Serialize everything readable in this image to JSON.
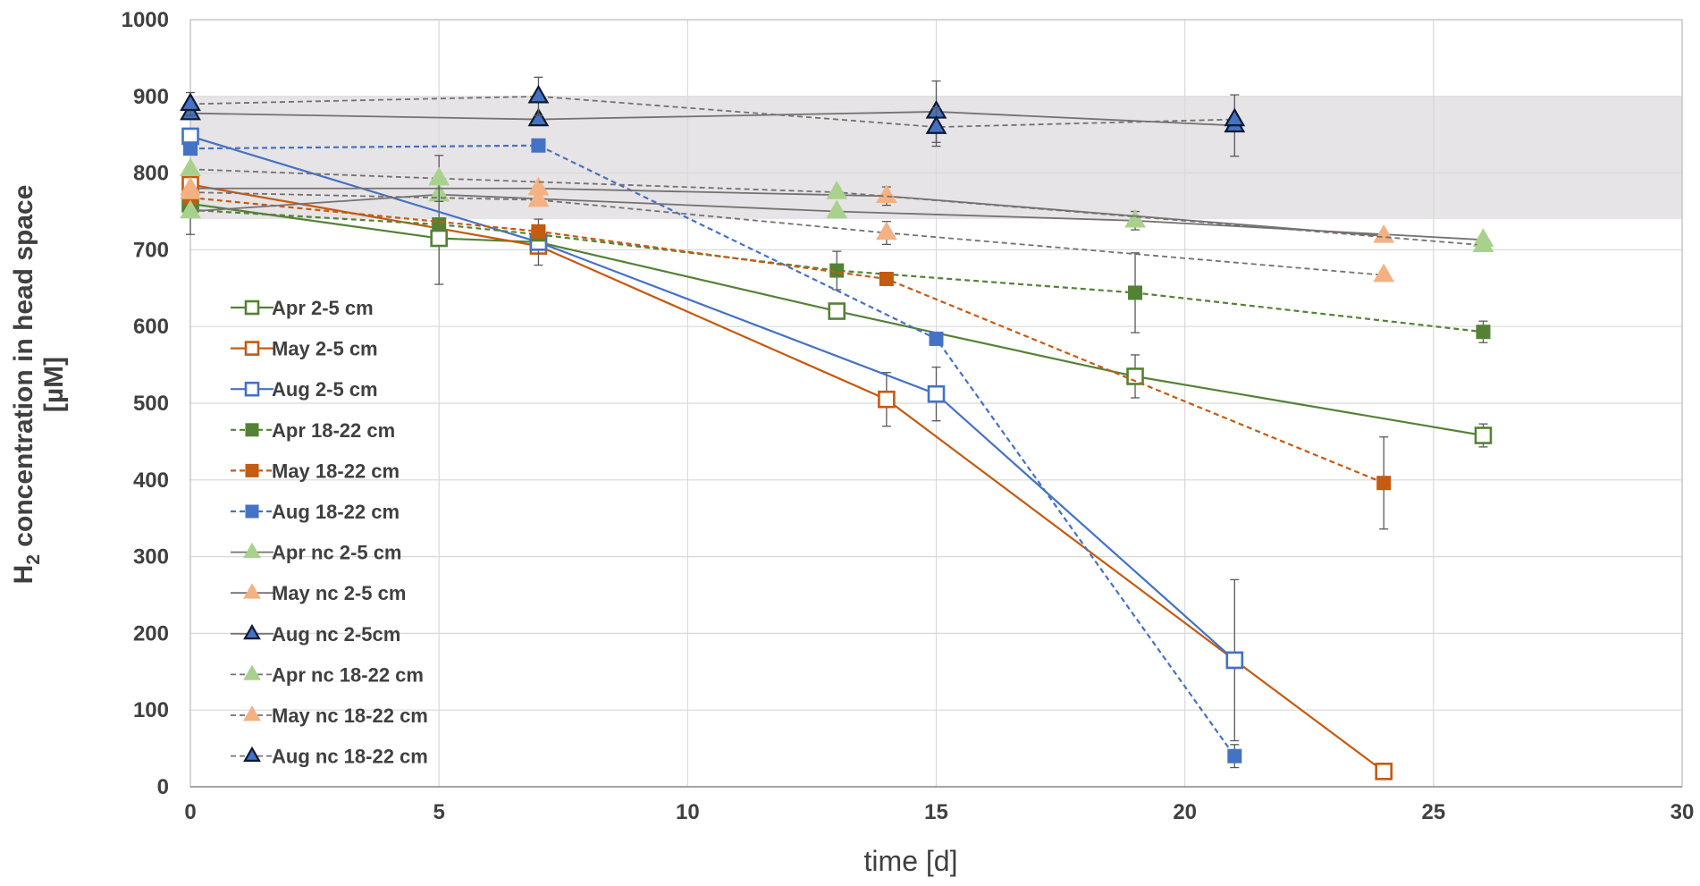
{
  "chart_data": {
    "type": "line",
    "xlabel": "time [d]",
    "ylabel": "H2 concentration in head space [µM]",
    "ylabel_parts": {
      "main": "H",
      "sub": "2",
      "rest": " concentration in head space",
      "unit": "[µM]"
    },
    "xlim": [
      0,
      30
    ],
    "ylim": [
      0,
      1000
    ],
    "xticks": [
      0,
      5,
      10,
      15,
      20,
      25,
      30
    ],
    "yticks": [
      0,
      100,
      200,
      300,
      400,
      500,
      600,
      700,
      800,
      900,
      1000
    ],
    "grid": true,
    "shaded_band": {
      "y_from": 740,
      "y_to": 900,
      "color": "#e6e4e6"
    },
    "legend_position": "left-middle",
    "colors": {
      "green": "#548235",
      "orange": "#c55a11",
      "blue": "#4472c4",
      "gray": "#767171",
      "tri_green": "#a9d18e",
      "tri_orange": "#f4b183",
      "tri_blue": "#4472c4"
    },
    "series": [
      {
        "name": "Apr 2-5 cm",
        "line": "#548235",
        "dash": false,
        "marker": "square-open",
        "mcolor": "#548235",
        "x": [
          0,
          5,
          7,
          13,
          19,
          26
        ],
        "y": [
          760,
          715,
          710,
          620,
          535,
          458
        ],
        "err": [
          40,
          60,
          0,
          0,
          28,
          15
        ]
      },
      {
        "name": "May 2-5 cm",
        "line": "#c55a11",
        "dash": false,
        "marker": "square-open",
        "mcolor": "#c55a11",
        "x": [
          0,
          7,
          14,
          21,
          24
        ],
        "y": [
          785,
          705,
          505,
          165,
          20
        ],
        "err": [
          0,
          0,
          35,
          0,
          0
        ]
      },
      {
        "name": "Aug 2-5 cm",
        "line": "#4472c4",
        "dash": false,
        "marker": "square-open",
        "mcolor": "#4472c4",
        "x": [
          0,
          7,
          15,
          21
        ],
        "y": [
          848,
          710,
          512,
          165
        ],
        "err": [
          0,
          30,
          35,
          105
        ]
      },
      {
        "name": "Apr 18-22 cm",
        "line": "#548235",
        "dash": true,
        "marker": "square-filled",
        "mcolor": "#548235",
        "x": [
          0,
          5,
          7,
          13,
          19,
          26
        ],
        "y": [
          752,
          733,
          720,
          673,
          644,
          593
        ],
        "err": [
          0,
          0,
          0,
          25,
          52,
          14
        ]
      },
      {
        "name": "May 18-22 cm",
        "line": "#c55a11",
        "dash": true,
        "marker": "square-filled",
        "mcolor": "#c55a11",
        "x": [
          0,
          7,
          14,
          24
        ],
        "y": [
          768,
          724,
          662,
          396
        ],
        "err": [
          0,
          0,
          0,
          60
        ]
      },
      {
        "name": "Aug 18-22 cm",
        "line": "#4472c4",
        "dash": true,
        "marker": "square-filled",
        "mcolor": "#4472c4",
        "x": [
          0,
          7,
          15,
          21
        ],
        "y": [
          832,
          836,
          584,
          40
        ],
        "err": [
          0,
          0,
          0,
          15
        ]
      },
      {
        "name": "Apr nc 2-5 cm",
        "line": "#767171",
        "dash": false,
        "marker": "triangle",
        "mcolor": "#a9d18e",
        "x": [
          0,
          5,
          13,
          19,
          26
        ],
        "y": [
          750,
          772,
          750,
          738,
          713
        ],
        "err": [
          0,
          0,
          0,
          12,
          0
        ]
      },
      {
        "name": "May nc 2-5 cm",
        "line": "#767171",
        "dash": false,
        "marker": "triangle",
        "mcolor": "#f4b183",
        "x": [
          0,
          7,
          14,
          24
        ],
        "y": [
          780,
          780,
          770,
          718
        ],
        "err": [
          0,
          0,
          12,
          0
        ]
      },
      {
        "name": "Aug nc 2-5cm",
        "line": "#767171",
        "dash": false,
        "marker": "triangle",
        "mcolor": "#4472c4",
        "x": [
          0,
          7,
          15,
          21
        ],
        "y": [
          878,
          870,
          880,
          862
        ],
        "err": [
          0,
          0,
          40,
          40
        ]
      },
      {
        "name": "Apr nc 18-22 cm",
        "line": "#767171",
        "dash": true,
        "marker": "triangle",
        "mcolor": "#a9d18e",
        "x": [
          0,
          5,
          13,
          26
        ],
        "y": [
          805,
          793,
          775,
          706
        ],
        "err": [
          0,
          30,
          0,
          0
        ]
      },
      {
        "name": "May nc 18-22 cm",
        "line": "#767171",
        "dash": true,
        "marker": "triangle",
        "mcolor": "#f4b183",
        "x": [
          0,
          7,
          14,
          24
        ],
        "y": [
          775,
          765,
          722,
          667
        ],
        "err": [
          0,
          0,
          15,
          0
        ]
      },
      {
        "name": "Aug nc 18-22 cm",
        "line": "#767171",
        "dash": true,
        "marker": "triangle",
        "mcolor": "#4472c4",
        "x": [
          0,
          7,
          15,
          21
        ],
        "y": [
          890,
          900,
          860,
          870
        ],
        "err": [
          15,
          25,
          25,
          0
        ]
      }
    ]
  }
}
